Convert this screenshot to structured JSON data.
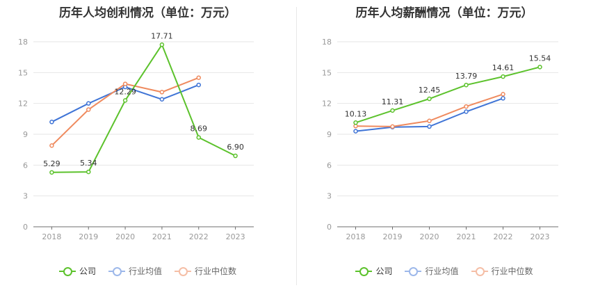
{
  "charts": [
    {
      "id": "left",
      "title": "历年人均创利情况（单位：万元）",
      "legend": [
        "公司",
        "行业均值",
        "行业中位数"
      ]
    },
    {
      "id": "right",
      "title": "历年人均薪酬情况（单位：万元）",
      "legend": [
        "公司",
        "行业均值",
        "行业中位数"
      ]
    }
  ],
  "colors": {
    "company": "#5cc22c",
    "avg": "#3f74d6",
    "median": "#ef8a5e",
    "grid": "#e6e6e6",
    "axis": "#999999"
  },
  "chart_data": [
    {
      "type": "line",
      "title": "历年人均创利情况（单位：万元）",
      "categories": [
        "2018",
        "2019",
        "2020",
        "2021",
        "2022",
        "2023"
      ],
      "ylim": [
        0,
        18
      ],
      "yticks": [
        0,
        3,
        6,
        9,
        12,
        15,
        18
      ],
      "grid": true,
      "legend_position": "bottom",
      "series": [
        {
          "name": "公司",
          "key": "company",
          "values": [
            5.29,
            5.34,
            12.29,
            17.71,
            8.69,
            6.9
          ],
          "labels": [
            "5.29",
            "5.34",
            "12.29",
            "17.71",
            "8.69",
            "6.90"
          ]
        },
        {
          "name": "行业均值",
          "key": "avg",
          "values": [
            10.2,
            12.0,
            13.6,
            12.4,
            13.8,
            null
          ]
        },
        {
          "name": "行业中位数",
          "key": "median",
          "values": [
            7.9,
            11.4,
            13.9,
            13.1,
            14.5,
            null
          ]
        }
      ]
    },
    {
      "type": "line",
      "title": "历年人均薪酬情况（单位：万元）",
      "categories": [
        "2018",
        "2019",
        "2020",
        "2021",
        "2022",
        "2023"
      ],
      "ylim": [
        0,
        18
      ],
      "yticks": [
        0,
        3,
        6,
        9,
        12,
        15,
        18
      ],
      "grid": true,
      "legend_position": "bottom",
      "series": [
        {
          "name": "公司",
          "key": "company",
          "values": [
            10.13,
            11.31,
            12.45,
            13.79,
            14.61,
            15.54
          ],
          "labels": [
            "10.13",
            "11.31",
            "12.45",
            "13.79",
            "14.61",
            "15.54"
          ]
        },
        {
          "name": "行业均值",
          "key": "avg",
          "values": [
            9.3,
            9.7,
            9.75,
            11.2,
            12.5,
            null
          ]
        },
        {
          "name": "行业中位数",
          "key": "median",
          "values": [
            9.8,
            9.75,
            10.3,
            11.7,
            12.9,
            null
          ]
        }
      ]
    }
  ]
}
